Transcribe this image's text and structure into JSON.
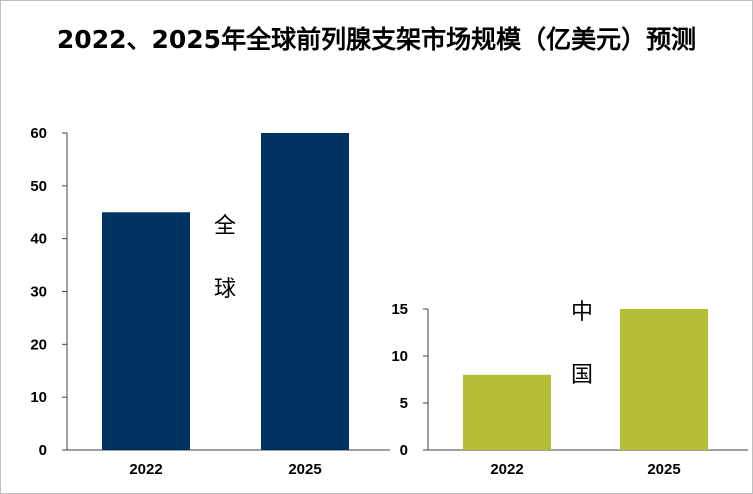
{
  "title": "2022、2025年全球前列腺支架市场规模（亿美元）预测",
  "colors": {
    "global": "#003361",
    "china": "#B4BE34",
    "axis": "#404040"
  },
  "chart_data": [
    {
      "type": "bar",
      "name": "全球",
      "label_chars": [
        "全",
        "球"
      ],
      "categories": [
        "2022",
        "2025"
      ],
      "values": [
        45,
        60
      ],
      "ylim": [
        0,
        60
      ],
      "yticks": [
        0,
        10,
        20,
        30,
        40,
        50,
        60
      ],
      "xlabel": "",
      "ylabel": ""
    },
    {
      "type": "bar",
      "name": "中国",
      "label_chars": [
        "中",
        "国"
      ],
      "categories": [
        "2022",
        "2025"
      ],
      "values": [
        8,
        15
      ],
      "ylim": [
        0,
        15
      ],
      "yticks": [
        0,
        5,
        10,
        15
      ],
      "xlabel": "",
      "ylabel": ""
    }
  ]
}
